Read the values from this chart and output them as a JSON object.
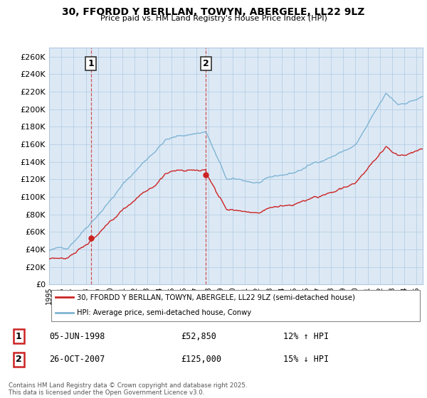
{
  "title": "30, FFORDD Y BERLLAN, TOWYN, ABERGELE, LL22 9LZ",
  "subtitle": "Price paid vs. HM Land Registry's House Price Index (HPI)",
  "legend_line1": "30, FFORDD Y BERLLAN, TOWYN, ABERGELE, LL22 9LZ (semi-detached house)",
  "legend_line2": "HPI: Average price, semi-detached house, Conwy",
  "transaction1_date": "05-JUN-1998",
  "transaction1_price": "£52,850",
  "transaction1_hpi": "12% ↑ HPI",
  "transaction2_date": "26-OCT-2007",
  "transaction2_price": "£125,000",
  "transaction2_hpi": "15% ↓ HPI",
  "footer": "Contains HM Land Registry data © Crown copyright and database right 2025.\nThis data is licensed under the Open Government Licence v3.0.",
  "hpi_color": "#7fb4d4",
  "price_color": "#cc2222",
  "bg_color": "#dce9f5",
  "grid_color": "#b0c8e0",
  "outer_bg": "#ffffff",
  "ylim": [
    0,
    270000
  ],
  "yticks": [
    0,
    20000,
    40000,
    60000,
    80000,
    100000,
    120000,
    140000,
    160000,
    180000,
    200000,
    220000,
    240000,
    260000
  ],
  "year_start": 1995,
  "year_end": 2025,
  "t1_year": 1998.4167,
  "t1_price": 52850,
  "t2_year": 2007.7917,
  "t2_price": 125000
}
